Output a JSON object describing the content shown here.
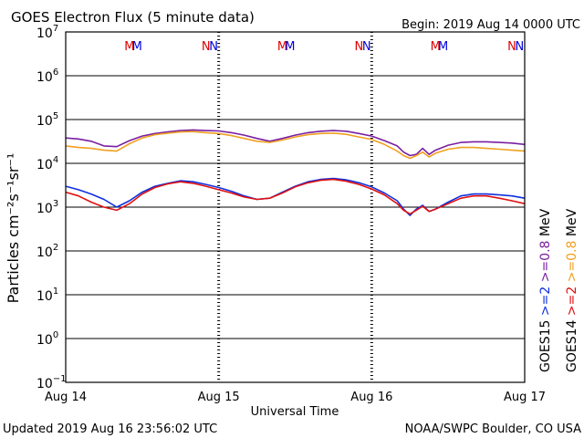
{
  "chart_data": {
    "type": "line",
    "title": "GOES Electron Flux (5 minute data)",
    "begin_label": "Begin: 2019 Aug 14 0000 UTC",
    "xlabel": "Universal Time",
    "ylabel": "Particles cm⁻²s⁻¹sr⁻¹",
    "y_scale": "log",
    "ylim": [
      0.1,
      10000000
    ],
    "xlim": [
      0,
      72
    ],
    "x_unit": "hours since 2019 Aug 14 0000 UTC",
    "x_ticks": [
      {
        "x": 0,
        "label": "Aug 14"
      },
      {
        "x": 24,
        "label": "Aug 15"
      },
      {
        "x": 48,
        "label": "Aug 16"
      },
      {
        "x": 72,
        "label": "Aug 17"
      }
    ],
    "y_ticks": [
      {
        "exp": -1,
        "label": "10",
        "sup": "−1"
      },
      {
        "exp": 0,
        "label": "10",
        "sup": "0"
      },
      {
        "exp": 1,
        "label": "10",
        "sup": "1"
      },
      {
        "exp": 2,
        "label": "10",
        "sup": "2"
      },
      {
        "exp": 3,
        "label": "10",
        "sup": "3"
      },
      {
        "exp": 4,
        "label": "10",
        "sup": "4"
      },
      {
        "exp": 5,
        "label": "10",
        "sup": "5"
      },
      {
        "exp": 6,
        "label": "10",
        "sup": "6"
      },
      {
        "exp": 7,
        "label": "10",
        "sup": "7"
      }
    ],
    "threshold": 1000,
    "grid": "horizontal",
    "markers": [
      {
        "x": 10.0,
        "text": "M",
        "color": "#dd0000"
      },
      {
        "x": 11.2,
        "text": "M",
        "color": "#0000dd"
      },
      {
        "x": 22.0,
        "text": "N",
        "color": "#dd0000"
      },
      {
        "x": 23.2,
        "text": "N",
        "color": "#0000dd"
      },
      {
        "x": 34.0,
        "text": "M",
        "color": "#dd0000"
      },
      {
        "x": 35.2,
        "text": "M",
        "color": "#0000dd"
      },
      {
        "x": 46.0,
        "text": "N",
        "color": "#dd0000"
      },
      {
        "x": 47.2,
        "text": "N",
        "color": "#0000dd"
      },
      {
        "x": 58.0,
        "text": "M",
        "color": "#dd0000"
      },
      {
        "x": 59.2,
        "text": "M",
        "color": "#0000dd"
      },
      {
        "x": 70.0,
        "text": "N",
        "color": "#dd0000"
      },
      {
        "x": 71.2,
        "text": "N",
        "color": "#0000dd"
      }
    ],
    "series": [
      {
        "color": "#7a1fa2",
        "x": [
          0,
          2,
          4,
          6,
          8,
          10,
          12,
          14,
          16,
          18,
          20,
          22,
          24,
          26,
          28,
          30,
          32,
          34,
          36,
          38,
          40,
          42,
          44,
          46,
          48,
          50,
          52,
          53,
          54,
          55,
          56,
          57,
          58,
          60,
          62,
          64,
          66,
          68,
          70,
          72
        ],
        "y": [
          38000,
          36000,
          32000,
          25000,
          24000,
          33000,
          42000,
          48000,
          52000,
          56000,
          58000,
          56000,
          55000,
          50000,
          44000,
          37000,
          32000,
          37000,
          44000,
          50000,
          54000,
          56000,
          54000,
          48000,
          42000,
          33000,
          25000,
          18000,
          15000,
          16000,
          22000,
          16000,
          20000,
          26000,
          30000,
          31000,
          31000,
          30000,
          29000,
          27000
        ]
      },
      {
        "color": "#f0a020",
        "x": [
          0,
          2,
          4,
          6,
          8,
          10,
          12,
          14,
          16,
          18,
          20,
          22,
          24,
          26,
          28,
          30,
          32,
          34,
          36,
          38,
          40,
          42,
          44,
          46,
          48,
          50,
          52,
          53,
          54,
          55,
          56,
          57,
          58,
          60,
          62,
          64,
          66,
          68,
          70,
          72
        ],
        "y": [
          25000,
          23000,
          22000,
          20000,
          19000,
          28000,
          38000,
          45000,
          49000,
          52000,
          53000,
          50000,
          48000,
          43000,
          37000,
          32000,
          30000,
          34000,
          40000,
          45000,
          48000,
          49000,
          46000,
          40000,
          35000,
          27000,
          19000,
          15000,
          13000,
          15000,
          18000,
          14000,
          17000,
          21000,
          23000,
          23000,
          22000,
          21000,
          20000,
          19000
        ]
      },
      {
        "color": "#1030e0",
        "x": [
          0,
          2,
          4,
          6,
          8,
          10,
          12,
          14,
          16,
          18,
          20,
          22,
          24,
          26,
          28,
          30,
          32,
          34,
          36,
          38,
          40,
          42,
          44,
          46,
          48,
          50,
          52,
          53,
          54,
          55,
          56,
          57,
          58,
          60,
          62,
          64,
          66,
          68,
          70,
          72
        ],
        "y": [
          3000,
          2500,
          2000,
          1500,
          1000,
          1400,
          2200,
          3000,
          3500,
          4000,
          3800,
          3300,
          2800,
          2300,
          1800,
          1500,
          1600,
          2200,
          3000,
          3800,
          4300,
          4500,
          4200,
          3600,
          2900,
          2100,
          1400,
          900,
          650,
          900,
          1100,
          800,
          900,
          1300,
          1800,
          2000,
          2000,
          1900,
          1800,
          1600
        ]
      },
      {
        "color": "#e01010",
        "x": [
          0,
          2,
          4,
          6,
          8,
          10,
          12,
          14,
          16,
          18,
          20,
          22,
          24,
          26,
          28,
          30,
          32,
          34,
          36,
          38,
          40,
          42,
          44,
          46,
          48,
          50,
          52,
          53,
          54,
          55,
          56,
          57,
          58,
          60,
          62,
          64,
          66,
          68,
          70,
          72
        ],
        "y": [
          2200,
          1800,
          1300,
          1000,
          850,
          1200,
          2000,
          2800,
          3400,
          3800,
          3500,
          3000,
          2500,
          2100,
          1700,
          1500,
          1600,
          2100,
          2900,
          3600,
          4100,
          4300,
          3900,
          3300,
          2600,
          1900,
          1200,
          850,
          700,
          850,
          1050,
          800,
          900,
          1200,
          1600,
          1800,
          1800,
          1600,
          1400,
          1200
        ]
      }
    ],
    "legend": [
      {
        "text": "GOES15",
        "color": "#000000"
      },
      {
        "text": ">=2",
        "color": "#1030e0"
      },
      {
        "text": ">=0.8",
        "color": "#7a1fa2"
      },
      {
        "text": "MeV",
        "color": "#000000"
      },
      {
        "text": "GOES14",
        "color": "#000000"
      },
      {
        "text": ">=2",
        "color": "#e01010"
      },
      {
        "text": ">=0.8",
        "color": "#f0a020"
      },
      {
        "text": "MeV",
        "color": "#000000"
      }
    ]
  },
  "footer": {
    "updated": "Updated 2019 Aug 16 23:56:02 UTC",
    "credit": "NOAA/SWPC Boulder, CO USA"
  }
}
